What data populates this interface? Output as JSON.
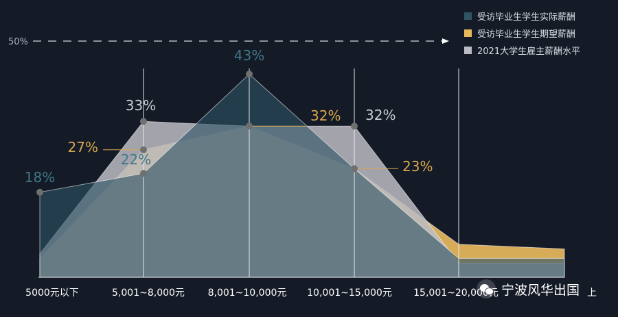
{
  "chart_data": {
    "type": "area",
    "categories": [
      "5000元以下",
      "5,001~8,000元",
      "8,001~10,000元",
      "10,001~15,000元",
      "15,001~20,000元",
      "20,000元以上"
    ],
    "reference_line": {
      "label": "50%",
      "value": 50
    },
    "ylim": [
      0,
      50
    ],
    "series": [
      {
        "name": "受访毕业生学生实际薪酬",
        "color": "#2e5466",
        "values": [
          18,
          22,
          43,
          23,
          4,
          4
        ],
        "labels": [
          "18%",
          "22%",
          "43%",
          null,
          null,
          null
        ]
      },
      {
        "name": "受访毕业生学生期望薪酬",
        "color": "#e7b95d",
        "values": [
          4,
          27,
          32,
          23,
          7,
          6
        ],
        "labels": [
          null,
          "27%",
          "32%",
          "23%",
          null,
          null
        ]
      },
      {
        "name": "2021大学生雇主薪酬水平",
        "color": "#bcbcc4",
        "values": [
          5,
          33,
          32,
          32,
          3,
          3
        ],
        "labels": [
          null,
          "33%",
          null,
          "32%",
          null,
          null
        ]
      }
    ],
    "x_axis_labels": [
      "5000元以下",
      "5,001~8,000元",
      "8,001~10,000元",
      "10,001~15,000元",
      "15,001~20,000元",
      "上"
    ]
  },
  "legend": {
    "items": [
      {
        "label": "受访毕业生学生实际薪酬",
        "color": "#2e5466"
      },
      {
        "label": "受访毕业生学生期望薪酬",
        "color": "#e7b95d"
      },
      {
        "label": "2021大学生雇主薪酬水平",
        "color": "#bcbcc4"
      }
    ]
  },
  "watermark": {
    "text": "宁波风华出国",
    "icon": "wechat-icon"
  }
}
